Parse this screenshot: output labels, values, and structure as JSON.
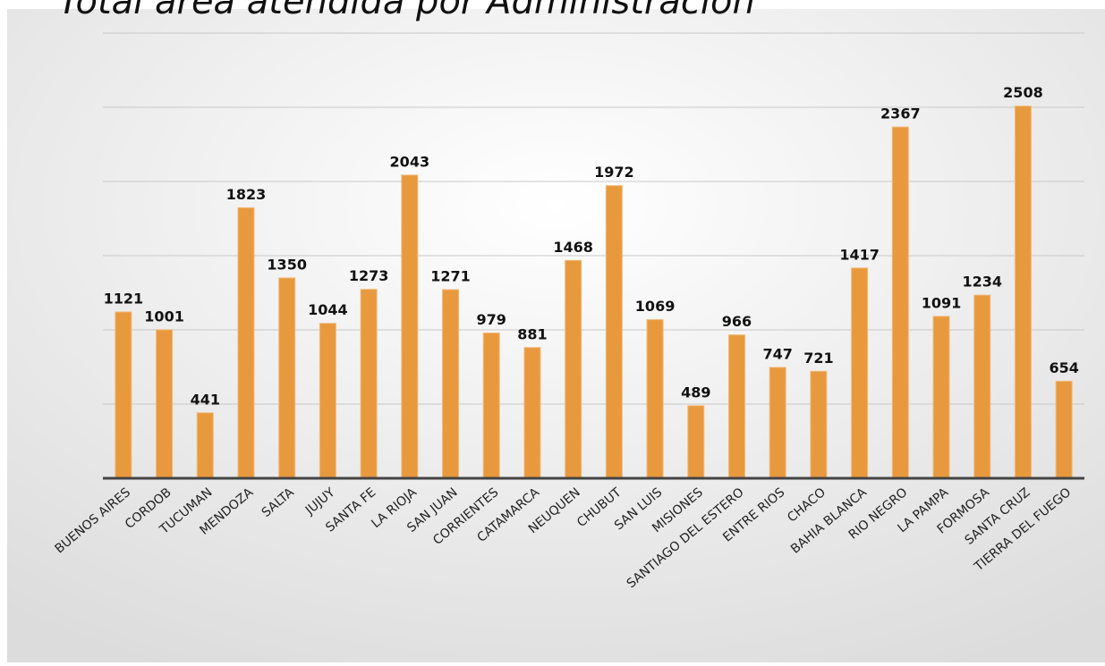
{
  "chart_data": {
    "type": "bar",
    "title": "Total área atendida por Administración",
    "categories": [
      "BUENOS AIRES",
      "CORDOB",
      "TUCUMAN",
      "MENDOZA",
      "SALTA",
      "JUJUY",
      "SANTA FE",
      "LA RIOJA",
      "SAN JUAN",
      "CORRIENTES",
      "CATAMARCA",
      "NEUQUEN",
      "CHUBUT",
      "SAN LUIS",
      "MISIONES",
      "SANTIAGO DEL ESTERO",
      "ENTRE RIOS",
      "CHACO",
      "BAHIA BLANCA",
      "RIO NEGRO",
      "LA PAMPA",
      "FORMOSA",
      "SANTA CRUZ",
      "TIERRA DEL FUEGO"
    ],
    "values": [
      1121,
      1001,
      441,
      1823,
      1350,
      1044,
      1273,
      2043,
      1271,
      979,
      881,
      1468,
      1972,
      1069,
      489,
      966,
      747,
      721,
      1417,
      2367,
      1091,
      1234,
      2508,
      654
    ],
    "color": "#e8993e",
    "ylim": [
      0,
      3000
    ],
    "yticks": [
      0,
      500,
      1000,
      1500,
      2000,
      2500,
      3000
    ],
    "grid": true
  }
}
